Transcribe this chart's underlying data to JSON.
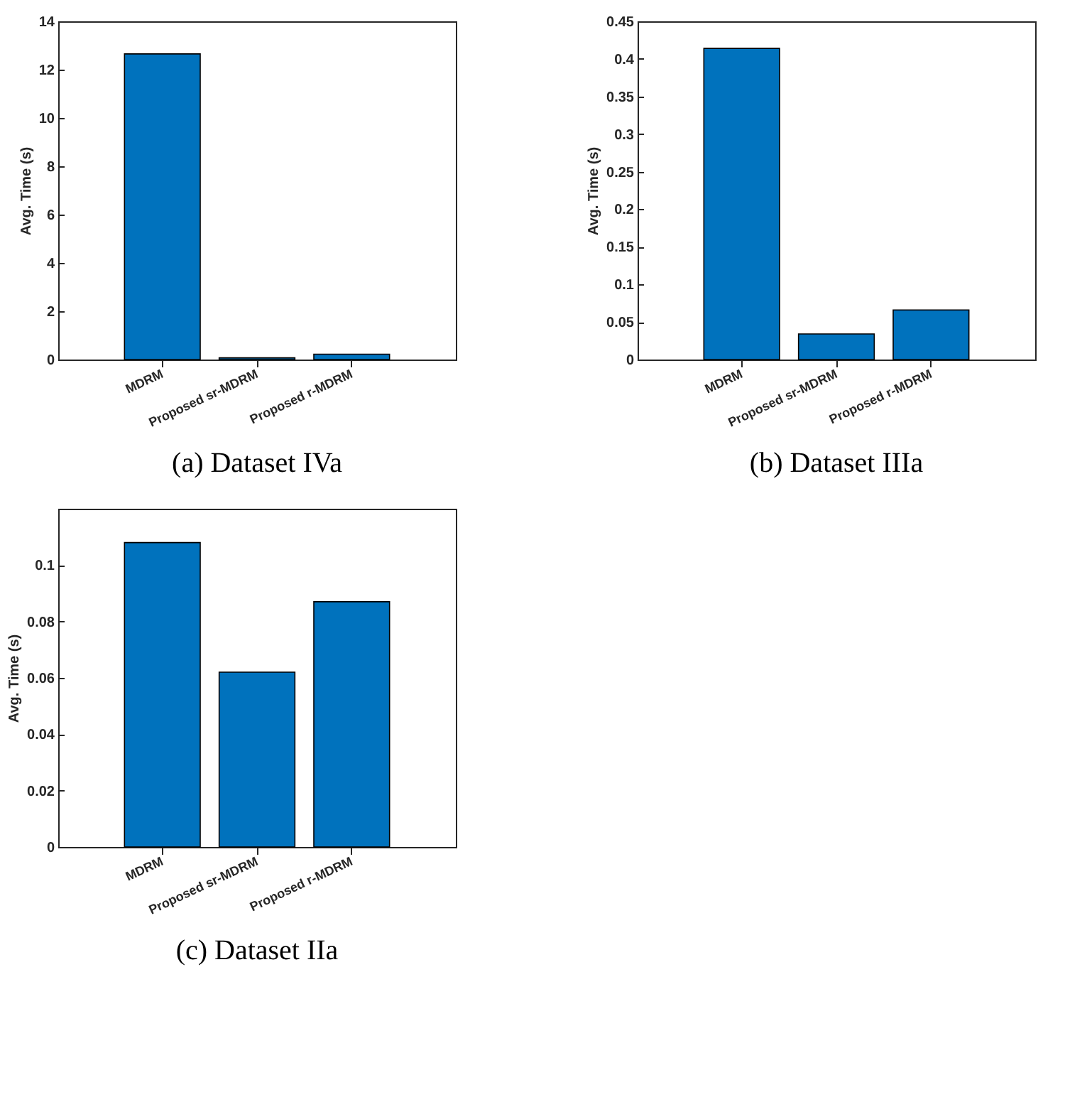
{
  "chart_data": [
    {
      "type": "bar",
      "title": "(a) Dataset IVa",
      "ylabel": "Avg. Time (s)",
      "categories": [
        "MDRM",
        "Proposed sr-MDRM",
        "Proposed r-MDRM"
      ],
      "values": [
        12.65,
        0.07,
        0.22
      ],
      "color": "#0072bd",
      "ylim": [
        0,
        14
      ],
      "yticks": [
        0,
        2,
        4,
        6,
        8,
        10,
        12,
        14
      ]
    },
    {
      "type": "bar",
      "title": "(b) Dataset IIIa",
      "ylabel": "Avg. Time (s)",
      "categories": [
        "MDRM",
        "Proposed sr-MDRM",
        "Proposed r-MDRM"
      ],
      "values": [
        0.414,
        0.034,
        0.066
      ],
      "color": "#0072bd",
      "ylim": [
        0,
        0.45
      ],
      "yticks": [
        0,
        0.05,
        0.1,
        0.15,
        0.2,
        0.25,
        0.3,
        0.35,
        0.4,
        0.45
      ]
    },
    {
      "type": "bar",
      "title": "(c) Dataset IIa",
      "ylabel": "Avg. Time (s)",
      "categories": [
        "MDRM",
        "Proposed sr-MDRM",
        "Proposed r-MDRM"
      ],
      "values": [
        0.108,
        0.062,
        0.087
      ],
      "color": "#0072bd",
      "ylim": [
        0,
        0.12
      ],
      "yticks": [
        0,
        0.02,
        0.04,
        0.06,
        0.08,
        0.1
      ]
    }
  ]
}
